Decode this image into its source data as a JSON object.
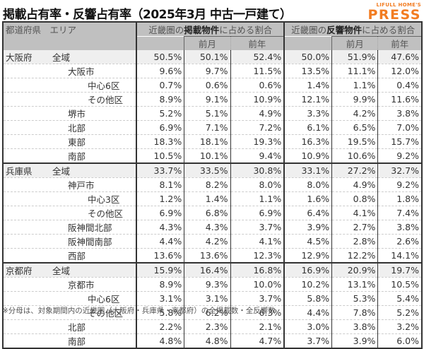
{
  "title": "掲載占有率・反響占有率（2025年3月 中古一戸建て）",
  "logo": {
    "top": "LIFULL HOME'S",
    "bottom": "PRESS",
    "color": "#f27c21"
  },
  "header": {
    "col_pref_area": "都道府県　エリア",
    "listing_group": {
      "prefix": "近畿圏の",
      "bold": "掲載物件",
      "suffix": "に占める割合"
    },
    "response_group": {
      "prefix": "近畿圏の",
      "bold": "反響物件",
      "suffix": "に占める割合"
    },
    "sub_prev_month": "前月",
    "sub_prev_year": "前年"
  },
  "rows": [
    {
      "pref": "大阪府",
      "area": "全域",
      "level": 0,
      "total": true,
      "listing": [
        "50.5%",
        "50.1%",
        "52.4%"
      ],
      "response": [
        "50.0%",
        "51.9%",
        "47.6%"
      ]
    },
    {
      "pref": "",
      "area": "大阪市",
      "level": 1,
      "listing": [
        "9.6%",
        "9.7%",
        "11.5%"
      ],
      "response": [
        "13.5%",
        "11.1%",
        "12.0%"
      ]
    },
    {
      "pref": "",
      "area": "中心6区",
      "level": 2,
      "listing": [
        "0.7%",
        "0.6%",
        "0.6%"
      ],
      "response": [
        "1.4%",
        "1.1%",
        "0.4%"
      ]
    },
    {
      "pref": "",
      "area": "その他区",
      "level": 2,
      "listing": [
        "8.9%",
        "9.1%",
        "10.9%"
      ],
      "response": [
        "12.1%",
        "9.9%",
        "11.6%"
      ]
    },
    {
      "pref": "",
      "area": "堺市",
      "level": 1,
      "listing": [
        "5.2%",
        "5.1%",
        "4.9%"
      ],
      "response": [
        "3.3%",
        "4.2%",
        "3.8%"
      ]
    },
    {
      "pref": "",
      "area": "北部",
      "level": 1,
      "listing": [
        "6.9%",
        "7.1%",
        "7.2%"
      ],
      "response": [
        "6.1%",
        "6.5%",
        "7.0%"
      ]
    },
    {
      "pref": "",
      "area": "東部",
      "level": 1,
      "listing": [
        "18.3%",
        "18.1%",
        "19.3%"
      ],
      "response": [
        "16.3%",
        "19.5%",
        "15.7%"
      ]
    },
    {
      "pref": "",
      "area": "南部",
      "level": 1,
      "group_end": true,
      "listing": [
        "10.5%",
        "10.1%",
        "9.4%"
      ],
      "response": [
        "10.9%",
        "10.6%",
        "9.2%"
      ]
    },
    {
      "pref": "兵庫県",
      "area": "全域",
      "level": 0,
      "total": true,
      "listing": [
        "33.7%",
        "33.5%",
        "30.8%"
      ],
      "response": [
        "33.1%",
        "27.2%",
        "32.7%"
      ]
    },
    {
      "pref": "",
      "area": "神戸市",
      "level": 1,
      "listing": [
        "8.1%",
        "8.2%",
        "8.0%"
      ],
      "response": [
        "8.0%",
        "4.9%",
        "9.2%"
      ]
    },
    {
      "pref": "",
      "area": "中心3区",
      "level": 2,
      "listing": [
        "1.2%",
        "1.4%",
        "1.1%"
      ],
      "response": [
        "1.6%",
        "0.8%",
        "1.8%"
      ]
    },
    {
      "pref": "",
      "area": "その他区",
      "level": 2,
      "listing": [
        "6.9%",
        "6.8%",
        "6.9%"
      ],
      "response": [
        "6.4%",
        "4.1%",
        "7.4%"
      ]
    },
    {
      "pref": "",
      "area": "阪神間北部",
      "level": 1,
      "listing": [
        "4.3%",
        "4.3%",
        "3.7%"
      ],
      "response": [
        "3.9%",
        "2.7%",
        "3.8%"
      ]
    },
    {
      "pref": "",
      "area": "阪神間南部",
      "level": 1,
      "listing": [
        "4.4%",
        "4.2%",
        "4.1%"
      ],
      "response": [
        "4.5%",
        "2.8%",
        "2.6%"
      ]
    },
    {
      "pref": "",
      "area": "西部",
      "level": 1,
      "group_end": true,
      "listing": [
        "13.6%",
        "13.6%",
        "12.3%"
      ],
      "response": [
        "12.9%",
        "12.2%",
        "14.1%"
      ]
    },
    {
      "pref": "京都府",
      "area": "全域",
      "level": 0,
      "total": true,
      "listing": [
        "15.9%",
        "16.4%",
        "16.8%"
      ],
      "response": [
        "16.9%",
        "20.9%",
        "19.7%"
      ]
    },
    {
      "pref": "",
      "area": "京都市",
      "level": 1,
      "listing": [
        "8.9%",
        "9.3%",
        "10.0%"
      ],
      "response": [
        "10.2%",
        "13.1%",
        "10.5%"
      ]
    },
    {
      "pref": "",
      "area": "中心6区",
      "level": 2,
      "listing": [
        "3.1%",
        "3.1%",
        "3.7%"
      ],
      "response": [
        "5.8%",
        "5.3%",
        "5.4%"
      ]
    },
    {
      "pref": "",
      "area": "その他区",
      "level": 2,
      "listing": [
        "5.8%",
        "6.2%",
        "6.3%"
      ],
      "response": [
        "4.4%",
        "7.8%",
        "5.2%"
      ]
    },
    {
      "pref": "",
      "area": "北部",
      "level": 1,
      "listing": [
        "2.2%",
        "2.3%",
        "2.1%"
      ],
      "response": [
        "3.0%",
        "3.8%",
        "3.2%"
      ]
    },
    {
      "pref": "",
      "area": "南部",
      "level": 1,
      "last": true,
      "listing": [
        "4.8%",
        "4.8%",
        "4.7%"
      ],
      "response": [
        "3.7%",
        "3.9%",
        "6.0%"
      ]
    }
  ],
  "footnote": "※分母は、対象期間内の近畿圏（大阪府・兵庫県・京都府）の全掲載数・全反響数"
}
